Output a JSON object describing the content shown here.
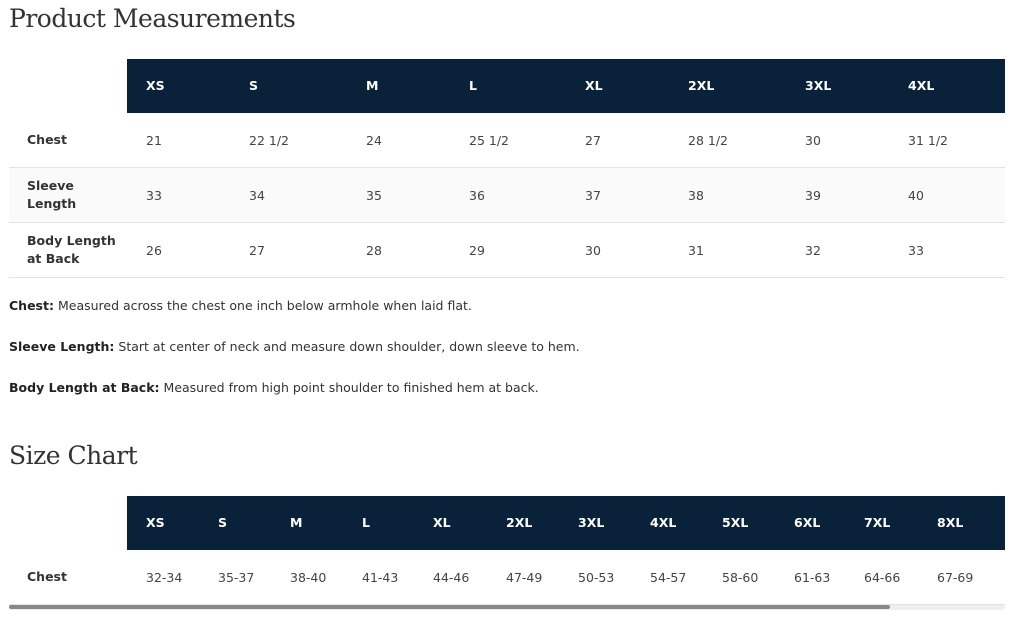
{
  "measurements": {
    "title": "Product Measurements",
    "header": [
      "XS",
      "S",
      "M",
      "L",
      "XL",
      "2XL",
      "3XL",
      "4XL"
    ],
    "rows": [
      {
        "label": "Chest",
        "cells": [
          "21",
          "22 1/2",
          "24",
          "25 1/2",
          "27",
          "28 1/2",
          "30",
          "31 1/2"
        ]
      },
      {
        "label": "Sleeve Length",
        "cells": [
          "33",
          "34",
          "35",
          "36",
          "37",
          "38",
          "39",
          "40"
        ]
      },
      {
        "label": "Body Length at Back",
        "cells": [
          "26",
          "27",
          "28",
          "29",
          "30",
          "31",
          "32",
          "33"
        ]
      }
    ]
  },
  "notes": [
    {
      "term": "Chest:",
      "text": "Measured across the chest one inch below armhole when laid flat."
    },
    {
      "term": "Sleeve Length:",
      "text": "Start at center of neck and measure down shoulder, down sleeve to hem."
    },
    {
      "term": "Body Length at Back:",
      "text": "Measured from high point shoulder to finished hem at back."
    }
  ],
  "size_chart": {
    "title": "Size Chart",
    "header": [
      "XS",
      "S",
      "M",
      "L",
      "XL",
      "2XL",
      "3XL",
      "4XL",
      "5XL",
      "6XL",
      "7XL",
      "8XL"
    ],
    "rows": [
      {
        "label": "Chest",
        "cells": [
          "32-34",
          "35-37",
          "38-40",
          "41-43",
          "44-46",
          "47-49",
          "50-53",
          "54-57",
          "58-60",
          "61-63",
          "64-66",
          "67-69"
        ]
      }
    ]
  }
}
